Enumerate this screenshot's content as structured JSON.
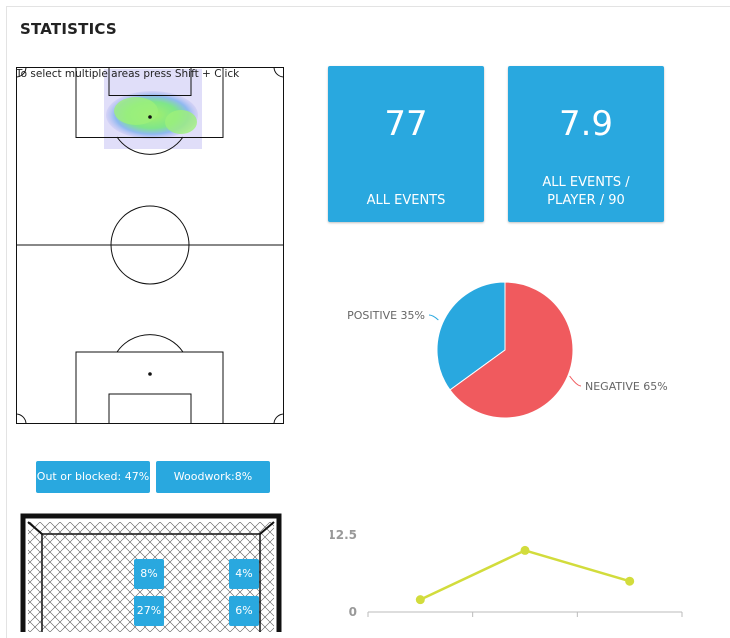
{
  "section_title": "STATISTICS",
  "pitch": {
    "hint": "To select multiple areas press Shift + Click"
  },
  "stats": {
    "all_events": {
      "value": "77",
      "label_lines": [
        "ALL EVENTS"
      ]
    },
    "per_player": {
      "value": "7.9",
      "label_lines": [
        "ALL EVENTS /",
        "PLAYER / 90"
      ]
    }
  },
  "outcome_pills": {
    "out_or_blocked": "Out or blocked: 47%",
    "woodwork": "Woodwork:8%"
  },
  "goal_zones": {
    "top_left": "8%",
    "top_right": "4%",
    "bottom_left": "27%",
    "bottom_right": "6%"
  },
  "colors": {
    "accent": "#29a8df",
    "negative": "#f05a5e",
    "positive": "#29a8df",
    "line": "#d2dc3c"
  },
  "chart_data": [
    {
      "type": "pie",
      "slices": [
        {
          "name": "POSITIVE",
          "value": 35,
          "label": "POSITIVE 35%",
          "color": "#29a8df"
        },
        {
          "name": "NEGATIVE",
          "value": 65,
          "label": "NEGATIVE 65%",
          "color": "#f05a5e"
        }
      ]
    },
    {
      "type": "line",
      "x": [
        1,
        2,
        3
      ],
      "y": [
        2,
        10,
        5
      ],
      "ylim": [
        0,
        12.5
      ],
      "ytick_labels": [
        "0",
        "12.5"
      ],
      "grid": false,
      "color": "#d2dc3c"
    }
  ]
}
